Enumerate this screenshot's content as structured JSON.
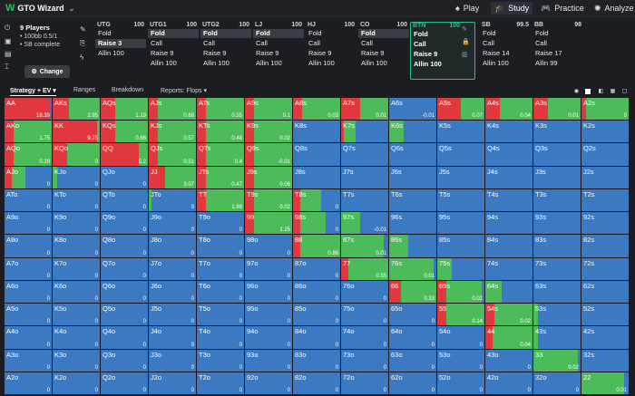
{
  "app": {
    "brand": "GTO Wizard"
  },
  "nav": [
    {
      "label": "Play",
      "icon": "spade-icon"
    },
    {
      "label": "Study",
      "icon": "graduation-cap-icon"
    },
    {
      "label": "Practice",
      "icon": "controller-icon"
    },
    {
      "label": "Analyze",
      "icon": "bulb-icon"
    }
  ],
  "setup": {
    "players": "9 Players",
    "stakes": "100bb 0.5/1",
    "sb_status": "SB complete",
    "change_label": "Change"
  },
  "positions": [
    {
      "name": "UTG",
      "stack": "100",
      "actions": [
        "Fold",
        "Raise 3",
        "Allin 100"
      ],
      "selected": 1
    },
    {
      "name": "UTG1",
      "stack": "100",
      "actions": [
        "Fold",
        "Call",
        "Raise 9",
        "Allin 100"
      ],
      "selected": 0
    },
    {
      "name": "UTG2",
      "stack": "100",
      "actions": [
        "Fold",
        "Call",
        "Raise 9",
        "Allin 100"
      ],
      "selected": 0
    },
    {
      "name": "LJ",
      "stack": "100",
      "actions": [
        "Fold",
        "Call",
        "Raise 9",
        "Allin 100"
      ],
      "selected": 0
    },
    {
      "name": "HJ",
      "stack": "100",
      "actions": [
        "Fold",
        "Call",
        "Raise 9",
        "Allin 100"
      ],
      "selected": -1
    },
    {
      "name": "CO",
      "stack": "100",
      "actions": [
        "Fold",
        "Call",
        "Raise 9",
        "Allin 100"
      ],
      "selected": 0
    },
    {
      "name": "BTN",
      "stack": "100",
      "actions": [
        "Fold",
        "Call",
        "Raise 9",
        "Allin 100"
      ],
      "selected": -1
    },
    {
      "name": "SB",
      "stack": "99.5",
      "actions": [
        "Fold",
        "Call",
        "Raise 14",
        "Allin 100"
      ],
      "selected": -1
    },
    {
      "name": "BB",
      "stack": "98",
      "actions": [
        "Fold",
        "Call",
        "Raise 17",
        "Allin 99"
      ],
      "selected": -1
    }
  ],
  "tabs": [
    "Strategy + EV",
    "Ranges",
    "Breakdown",
    "Reports: Flops"
  ],
  "colors": {
    "raise": "#e0383e",
    "call": "#4cbc5a",
    "fold": "#3b79c2",
    "accent": "#23c48e"
  },
  "grid": [
    [
      {
        "h": "AA",
        "r": 0.98,
        "c": 0,
        "ev": "18.39"
      },
      {
        "h": "AKs",
        "r": 0.35,
        "c": 0.65,
        "ev": "2.95"
      },
      {
        "h": "AQs",
        "r": 0.3,
        "c": 0.7,
        "ev": "1.19"
      },
      {
        "h": "AJs",
        "r": 0.2,
        "c": 0.8,
        "ev": "0.68"
      },
      {
        "h": "ATs",
        "r": 0.2,
        "c": 0.8,
        "ev": "0.55"
      },
      {
        "h": "A9s",
        "r": 0.2,
        "c": 0.8,
        "ev": "0.1"
      },
      {
        "h": "A8s",
        "r": 0.2,
        "c": 0.8,
        "ev": "0.03"
      },
      {
        "h": "A7s",
        "r": 0.4,
        "c": 0.6,
        "ev": "0.01"
      },
      {
        "h": "A6s",
        "r": 0,
        "c": 0,
        "ev": "-0.01"
      },
      {
        "h": "A5s",
        "r": 0.5,
        "c": 0.5,
        "ev": "0.07"
      },
      {
        "h": "A4s",
        "r": 0.3,
        "c": 0.7,
        "ev": "0.04"
      },
      {
        "h": "A3s",
        "r": 0.3,
        "c": 0.7,
        "ev": "0.01"
      },
      {
        "h": "A2s",
        "r": 0.1,
        "c": 0.9,
        "ev": "0"
      }
    ],
    [
      {
        "h": "AKo",
        "r": 0.2,
        "c": 0.8,
        "ev": "1.75"
      },
      {
        "h": "KK",
        "r": 0.95,
        "c": 0.05,
        "ev": "9.75"
      },
      {
        "h": "KQs",
        "r": 0.3,
        "c": 0.7,
        "ev": "0.66"
      },
      {
        "h": "KJs",
        "r": 0.2,
        "c": 0.8,
        "ev": "0.57"
      },
      {
        "h": "KTs",
        "r": 0.2,
        "c": 0.8,
        "ev": "0.48"
      },
      {
        "h": "K9s",
        "r": 0.2,
        "c": 0.8,
        "ev": "0.02"
      },
      {
        "h": "K8s",
        "r": 0,
        "c": 0,
        "ev": ""
      },
      {
        "h": "K7s",
        "r": 0.05,
        "c": 0.25,
        "ev": ""
      },
      {
        "h": "K6s",
        "r": 0,
        "c": 0.3,
        "ev": ""
      },
      {
        "h": "K5s",
        "r": 0,
        "c": 0,
        "ev": ""
      },
      {
        "h": "K4s",
        "r": 0,
        "c": 0,
        "ev": ""
      },
      {
        "h": "K3s",
        "r": 0,
        "c": 0,
        "ev": ""
      },
      {
        "h": "K2s",
        "r": 0,
        "c": 0,
        "ev": ""
      }
    ],
    [
      {
        "h": "AQo",
        "r": 0.2,
        "c": 0.8,
        "ev": "0.29"
      },
      {
        "h": "KQo",
        "r": 0.3,
        "c": 0.7,
        "ev": "0"
      },
      {
        "h": "QQ",
        "r": 0.8,
        "c": 0.2,
        "ev": "5.2"
      },
      {
        "h": "QJs",
        "r": 0.2,
        "c": 0.8,
        "ev": "0.51"
      },
      {
        "h": "QTs",
        "r": 0.2,
        "c": 0.8,
        "ev": "0.4"
      },
      {
        "h": "Q9s",
        "r": 0.2,
        "c": 0.8,
        "ev": "-0.01"
      },
      {
        "h": "Q8s",
        "r": 0,
        "c": 0,
        "ev": ""
      },
      {
        "h": "Q7s",
        "r": 0,
        "c": 0,
        "ev": ""
      },
      {
        "h": "Q6s",
        "r": 0,
        "c": 0,
        "ev": ""
      },
      {
        "h": "Q5s",
        "r": 0,
        "c": 0,
        "ev": ""
      },
      {
        "h": "Q4s",
        "r": 0,
        "c": 0,
        "ev": ""
      },
      {
        "h": "Q3s",
        "r": 0,
        "c": 0,
        "ev": ""
      },
      {
        "h": "Q2s",
        "r": 0,
        "c": 0,
        "ev": ""
      }
    ],
    [
      {
        "h": "AJo",
        "r": 0.15,
        "c": 0.3,
        "ev": "0"
      },
      {
        "h": "KJo",
        "r": 0,
        "c": 0.1,
        "ev": "0"
      },
      {
        "h": "QJo",
        "r": 0,
        "c": 0,
        "ev": "0"
      },
      {
        "h": "JJ",
        "r": 0.35,
        "c": 0.65,
        "ev": "3.07"
      },
      {
        "h": "JTs",
        "r": 0.2,
        "c": 0.8,
        "ev": "0.47"
      },
      {
        "h": "J9s",
        "r": 0.2,
        "c": 0.8,
        "ev": "0.06"
      },
      {
        "h": "J8s",
        "r": 0,
        "c": 0,
        "ev": ""
      },
      {
        "h": "J7s",
        "r": 0,
        "c": 0,
        "ev": ""
      },
      {
        "h": "J6s",
        "r": 0,
        "c": 0,
        "ev": ""
      },
      {
        "h": "J5s",
        "r": 0,
        "c": 0,
        "ev": ""
      },
      {
        "h": "J4s",
        "r": 0,
        "c": 0,
        "ev": ""
      },
      {
        "h": "J3s",
        "r": 0,
        "c": 0,
        "ev": ""
      },
      {
        "h": "J2s",
        "r": 0,
        "c": 0,
        "ev": ""
      }
    ],
    [
      {
        "h": "ATo",
        "r": 0,
        "c": 0,
        "ev": "0"
      },
      {
        "h": "KTo",
        "r": 0,
        "c": 0,
        "ev": "0"
      },
      {
        "h": "QTo",
        "r": 0,
        "c": 0,
        "ev": "0"
      },
      {
        "h": "JTo",
        "r": 0,
        "c": 0.05,
        "ev": "0"
      },
      {
        "h": "TT",
        "r": 0.2,
        "c": 0.8,
        "ev": "1.99"
      },
      {
        "h": "T9s",
        "r": 0.2,
        "c": 0.8,
        "ev": "0.02"
      },
      {
        "h": "T8s",
        "r": 0.15,
        "c": 0.45,
        "ev": "0"
      },
      {
        "h": "T7s",
        "r": 0,
        "c": 0,
        "ev": ""
      },
      {
        "h": "T6s",
        "r": 0,
        "c": 0,
        "ev": ""
      },
      {
        "h": "T5s",
        "r": 0,
        "c": 0,
        "ev": ""
      },
      {
        "h": "T4s",
        "r": 0,
        "c": 0,
        "ev": ""
      },
      {
        "h": "T3s",
        "r": 0,
        "c": 0,
        "ev": ""
      },
      {
        "h": "T2s",
        "r": 0,
        "c": 0,
        "ev": ""
      }
    ],
    [
      {
        "h": "A9o",
        "r": 0,
        "c": 0,
        "ev": "0"
      },
      {
        "h": "K9o",
        "r": 0,
        "c": 0,
        "ev": "0"
      },
      {
        "h": "Q9o",
        "r": 0,
        "c": 0,
        "ev": "0"
      },
      {
        "h": "J9o",
        "r": 0,
        "c": 0,
        "ev": "0"
      },
      {
        "h": "T9o",
        "r": 0,
        "c": 0,
        "ev": "0"
      },
      {
        "h": "99",
        "r": 0.2,
        "c": 0.8,
        "ev": "1.25"
      },
      {
        "h": "98s",
        "r": 0.15,
        "c": 0.55,
        "ev": "0"
      },
      {
        "h": "97s",
        "r": 0,
        "c": 0.4,
        "ev": "-0.01"
      },
      {
        "h": "96s",
        "r": 0,
        "c": 0,
        "ev": ""
      },
      {
        "h": "95s",
        "r": 0,
        "c": 0,
        "ev": ""
      },
      {
        "h": "94s",
        "r": 0,
        "c": 0,
        "ev": ""
      },
      {
        "h": "93s",
        "r": 0,
        "c": 0,
        "ev": ""
      },
      {
        "h": "92s",
        "r": 0,
        "c": 0,
        "ev": ""
      }
    ],
    [
      {
        "h": "A8o",
        "r": 0,
        "c": 0,
        "ev": "0"
      },
      {
        "h": "K8o",
        "r": 0,
        "c": 0,
        "ev": "0"
      },
      {
        "h": "Q8o",
        "r": 0,
        "c": 0,
        "ev": "0"
      },
      {
        "h": "J8o",
        "r": 0,
        "c": 0,
        "ev": "0"
      },
      {
        "h": "T8o",
        "r": 0,
        "c": 0,
        "ev": "0"
      },
      {
        "h": "98o",
        "r": 0,
        "c": 0,
        "ev": "0"
      },
      {
        "h": "88",
        "r": 0.15,
        "c": 0.85,
        "ev": "0.86"
      },
      {
        "h": "87s",
        "r": 0,
        "c": 0.9,
        "ev": "0.01"
      },
      {
        "h": "86s",
        "r": 0,
        "c": 0.4,
        "ev": ""
      },
      {
        "h": "85s",
        "r": 0,
        "c": 0,
        "ev": ""
      },
      {
        "h": "84s",
        "r": 0,
        "c": 0,
        "ev": ""
      },
      {
        "h": "83s",
        "r": 0,
        "c": 0,
        "ev": ""
      },
      {
        "h": "82s",
        "r": 0,
        "c": 0,
        "ev": ""
      }
    ],
    [
      {
        "h": "A7o",
        "r": 0,
        "c": 0,
        "ev": "0"
      },
      {
        "h": "K7o",
        "r": 0,
        "c": 0,
        "ev": "0"
      },
      {
        "h": "Q7o",
        "r": 0,
        "c": 0,
        "ev": "0"
      },
      {
        "h": "J7o",
        "r": 0,
        "c": 0,
        "ev": "0"
      },
      {
        "h": "T7o",
        "r": 0,
        "c": 0,
        "ev": "0"
      },
      {
        "h": "97o",
        "r": 0,
        "c": 0,
        "ev": "0"
      },
      {
        "h": "87o",
        "r": 0,
        "c": 0,
        "ev": "0"
      },
      {
        "h": "77",
        "r": 0.15,
        "c": 0.85,
        "ev": "0.55"
      },
      {
        "h": "76s",
        "r": 0,
        "c": 0.95,
        "ev": "0.01"
      },
      {
        "h": "75s",
        "r": 0,
        "c": 0.3,
        "ev": ""
      },
      {
        "h": "74s",
        "r": 0,
        "c": 0,
        "ev": ""
      },
      {
        "h": "73s",
        "r": 0,
        "c": 0,
        "ev": ""
      },
      {
        "h": "72s",
        "r": 0,
        "c": 0,
        "ev": ""
      }
    ],
    [
      {
        "h": "A6o",
        "r": 0,
        "c": 0,
        "ev": "0"
      },
      {
        "h": "K6o",
        "r": 0,
        "c": 0,
        "ev": "0"
      },
      {
        "h": "Q6o",
        "r": 0,
        "c": 0,
        "ev": "0"
      },
      {
        "h": "J6o",
        "r": 0,
        "c": 0,
        "ev": "0"
      },
      {
        "h": "T6o",
        "r": 0,
        "c": 0,
        "ev": "0"
      },
      {
        "h": "96o",
        "r": 0,
        "c": 0,
        "ev": "0"
      },
      {
        "h": "86o",
        "r": 0,
        "c": 0,
        "ev": "0"
      },
      {
        "h": "76o",
        "r": 0,
        "c": 0,
        "ev": "0"
      },
      {
        "h": "66",
        "r": 0.25,
        "c": 0.75,
        "ev": "0.33"
      },
      {
        "h": "65s",
        "r": 0.2,
        "c": 0.75,
        "ev": "0.02"
      },
      {
        "h": "64s",
        "r": 0,
        "c": 0.35,
        "ev": ""
      },
      {
        "h": "63s",
        "r": 0,
        "c": 0,
        "ev": ""
      },
      {
        "h": "62s",
        "r": 0,
        "c": 0,
        "ev": ""
      }
    ],
    [
      {
        "h": "A5o",
        "r": 0,
        "c": 0,
        "ev": "0"
      },
      {
        "h": "K5o",
        "r": 0,
        "c": 0,
        "ev": "0"
      },
      {
        "h": "Q5o",
        "r": 0,
        "c": 0,
        "ev": "0"
      },
      {
        "h": "J5o",
        "r": 0,
        "c": 0,
        "ev": "0"
      },
      {
        "h": "T5o",
        "r": 0,
        "c": 0,
        "ev": "0"
      },
      {
        "h": "95o",
        "r": 0,
        "c": 0,
        "ev": "0"
      },
      {
        "h": "85o",
        "r": 0,
        "c": 0,
        "ev": "0"
      },
      {
        "h": "75o",
        "r": 0,
        "c": 0,
        "ev": "0"
      },
      {
        "h": "65o",
        "r": 0,
        "c": 0,
        "ev": "0"
      },
      {
        "h": "55",
        "r": 0.2,
        "c": 0.8,
        "ev": "0.14"
      },
      {
        "h": "54s",
        "r": 0.2,
        "c": 0.8,
        "ev": "0.02"
      },
      {
        "h": "53s",
        "r": 0,
        "c": 0.1,
        "ev": ""
      },
      {
        "h": "52s",
        "r": 0,
        "c": 0,
        "ev": ""
      }
    ],
    [
      {
        "h": "A4o",
        "r": 0,
        "c": 0,
        "ev": "0"
      },
      {
        "h": "K4o",
        "r": 0,
        "c": 0,
        "ev": "0"
      },
      {
        "h": "Q4o",
        "r": 0,
        "c": 0,
        "ev": "0"
      },
      {
        "h": "J4o",
        "r": 0,
        "c": 0,
        "ev": "0"
      },
      {
        "h": "T4o",
        "r": 0,
        "c": 0,
        "ev": "0"
      },
      {
        "h": "94o",
        "r": 0,
        "c": 0,
        "ev": "0"
      },
      {
        "h": "84o",
        "r": 0,
        "c": 0,
        "ev": "0"
      },
      {
        "h": "74o",
        "r": 0,
        "c": 0,
        "ev": "0"
      },
      {
        "h": "64o",
        "r": 0,
        "c": 0,
        "ev": "0"
      },
      {
        "h": "54o",
        "r": 0,
        "c": 0,
        "ev": "0"
      },
      {
        "h": "44",
        "r": 0.15,
        "c": 0.85,
        "ev": "0.04"
      },
      {
        "h": "43s",
        "r": 0,
        "c": 0.1,
        "ev": ""
      },
      {
        "h": "42s",
        "r": 0,
        "c": 0,
        "ev": ""
      }
    ],
    [
      {
        "h": "A3o",
        "r": 0,
        "c": 0,
        "ev": "0"
      },
      {
        "h": "K3o",
        "r": 0,
        "c": 0,
        "ev": "0"
      },
      {
        "h": "Q3o",
        "r": 0,
        "c": 0,
        "ev": "0"
      },
      {
        "h": "J3o",
        "r": 0,
        "c": 0,
        "ev": "0"
      },
      {
        "h": "T3o",
        "r": 0,
        "c": 0,
        "ev": "0"
      },
      {
        "h": "93o",
        "r": 0,
        "c": 0,
        "ev": "0"
      },
      {
        "h": "83o",
        "r": 0,
        "c": 0,
        "ev": "0"
      },
      {
        "h": "73o",
        "r": 0,
        "c": 0,
        "ev": "0"
      },
      {
        "h": "63o",
        "r": 0,
        "c": 0,
        "ev": "0"
      },
      {
        "h": "53o",
        "r": 0,
        "c": 0,
        "ev": "0"
      },
      {
        "h": "43o",
        "r": 0,
        "c": 0,
        "ev": "0"
      },
      {
        "h": "33",
        "r": 0,
        "c": 0.95,
        "ev": "0.02"
      },
      {
        "h": "32s",
        "r": 0,
        "c": 0,
        "ev": ""
      }
    ],
    [
      {
        "h": "A2o",
        "r": 0,
        "c": 0,
        "ev": "0"
      },
      {
        "h": "K2o",
        "r": 0,
        "c": 0,
        "ev": "0"
      },
      {
        "h": "Q2o",
        "r": 0,
        "c": 0,
        "ev": "0"
      },
      {
        "h": "J2o",
        "r": 0,
        "c": 0,
        "ev": "0"
      },
      {
        "h": "T2o",
        "r": 0,
        "c": 0,
        "ev": "0"
      },
      {
        "h": "92o",
        "r": 0,
        "c": 0,
        "ev": "0"
      },
      {
        "h": "82o",
        "r": 0,
        "c": 0,
        "ev": "0"
      },
      {
        "h": "72o",
        "r": 0,
        "c": 0,
        "ev": "0"
      },
      {
        "h": "62o",
        "r": 0,
        "c": 0,
        "ev": "0"
      },
      {
        "h": "52o",
        "r": 0,
        "c": 0,
        "ev": "0"
      },
      {
        "h": "42o",
        "r": 0,
        "c": 0,
        "ev": "0"
      },
      {
        "h": "32o",
        "r": 0,
        "c": 0,
        "ev": "0"
      },
      {
        "h": "22",
        "r": 0,
        "c": 0.9,
        "ev": "0.01"
      }
    ]
  ]
}
